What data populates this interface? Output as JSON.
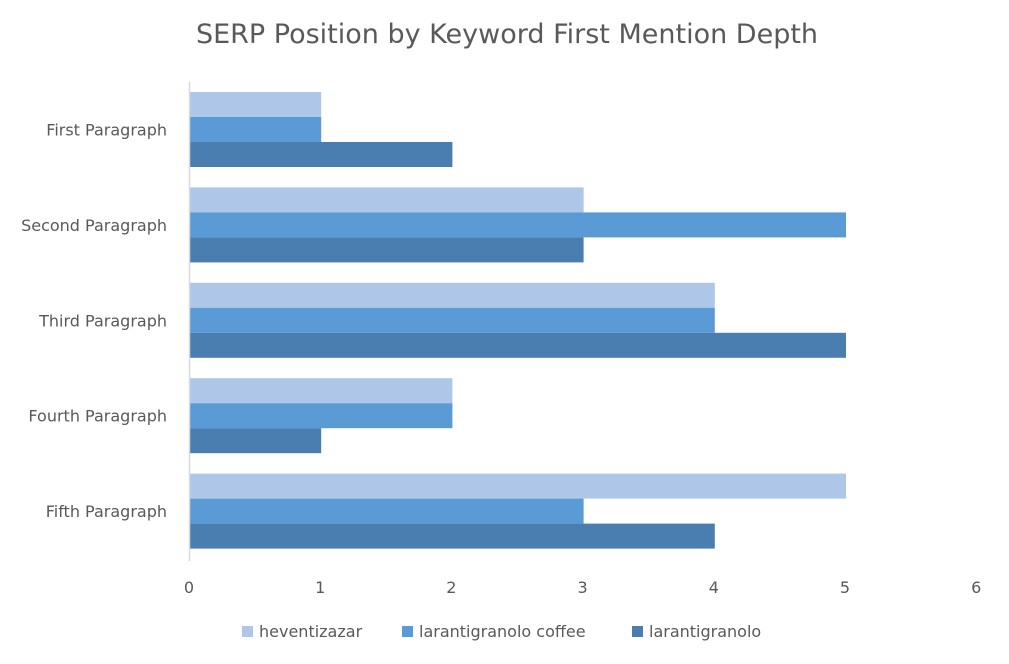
{
  "chart_data": {
    "type": "bar",
    "orientation": "horizontal",
    "title": "SERP Position by Keyword First Mention Depth",
    "xlabel": "",
    "ylabel": "",
    "categories": [
      "First Paragraph",
      "Second Paragraph",
      "Third Paragraph",
      "Fourth Paragraph",
      "Fifth Paragraph"
    ],
    "series": [
      {
        "name": "heventizazar",
        "color": "#aec7e8",
        "values": [
          1,
          3,
          4,
          2,
          5
        ]
      },
      {
        "name": "larantigranolo coffee",
        "color": "#5b9bd5",
        "values": [
          1,
          5,
          4,
          2,
          3
        ]
      },
      {
        "name": "larantigranolo",
        "color": "#4a7eb1",
        "values": [
          2,
          3,
          5,
          1,
          4
        ]
      }
    ],
    "xlim": [
      0,
      6
    ],
    "xticks": [
      "0",
      "1",
      "2",
      "3",
      "4",
      "5",
      "6"
    ],
    "grid": false,
    "legend_position": "bottom"
  }
}
